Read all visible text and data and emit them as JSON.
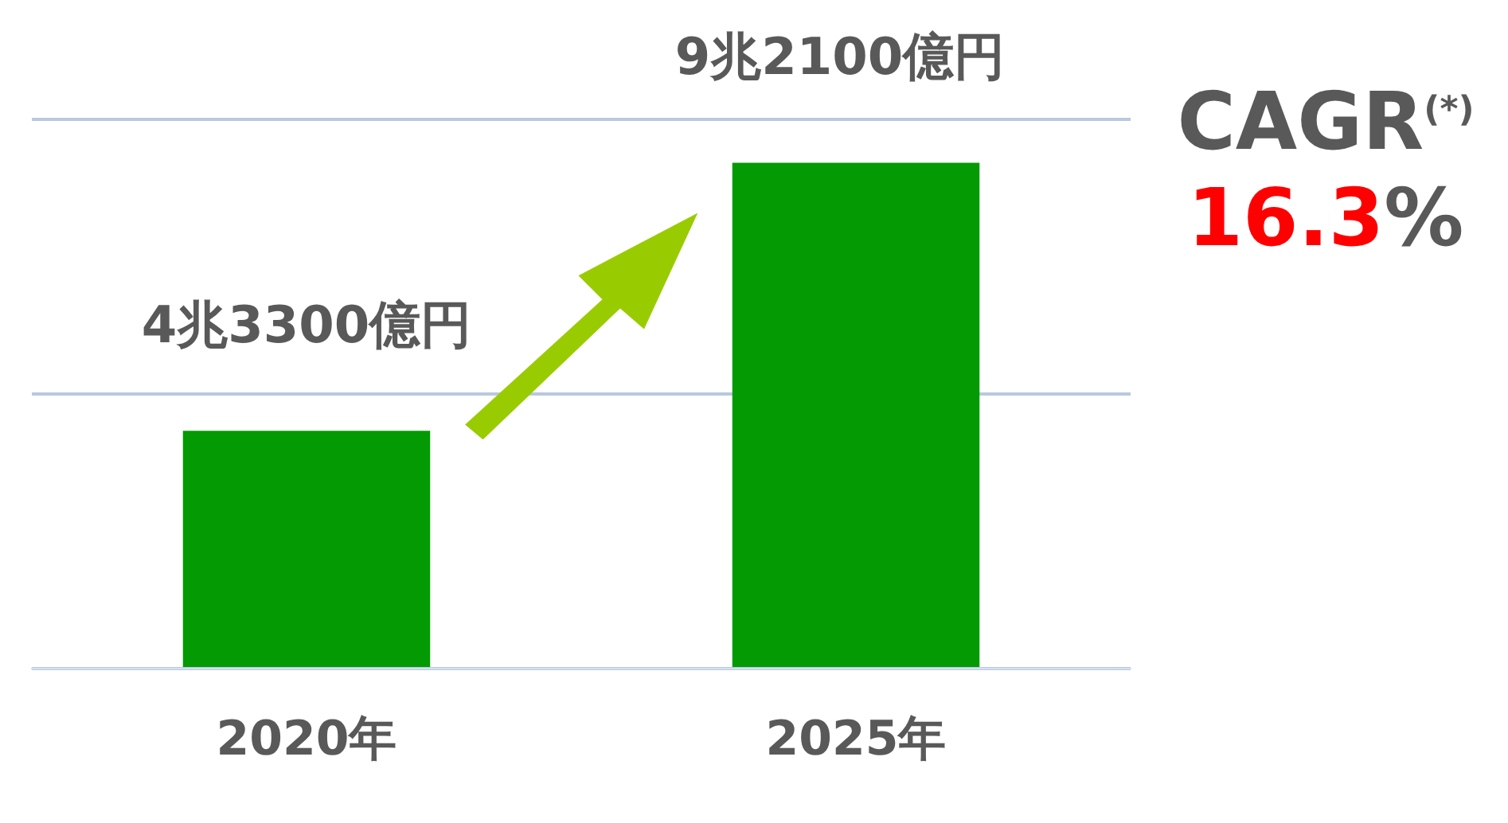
{
  "chart_data": {
    "type": "bar",
    "categories": [
      "2020年",
      "2025年"
    ],
    "values": [
      4.33,
      9.21
    ],
    "value_labels": [
      "4兆3300億円",
      "9兆2100億円"
    ],
    "color": "#049a04",
    "ylim": [
      0,
      10
    ],
    "yticks": [
      {
        "value": 0,
        "label": null
      },
      {
        "value": 5,
        "label": null
      },
      {
        "value": 10,
        "label": null
      }
    ],
    "tick_labels": "x",
    "grid": "y",
    "legend": false,
    "annotations": [
      "CAGR$^{(*)}$",
      "16.3%"
    ]
  }
}
